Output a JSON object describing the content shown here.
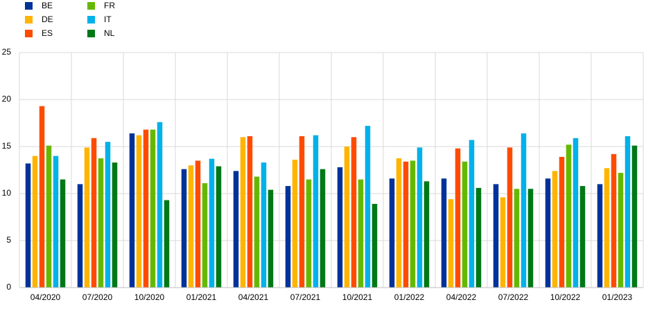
{
  "chart_data": {
    "type": "bar",
    "categories": [
      "04/2020",
      "07/2020",
      "10/2020",
      "01/2021",
      "04/2021",
      "07/2021",
      "10/2021",
      "01/2022",
      "04/2022",
      "07/2022",
      "10/2022",
      "01/2023"
    ],
    "series": [
      {
        "name": "BE",
        "color": "#003299",
        "values": [
          13.2,
          11.0,
          16.4,
          12.6,
          12.4,
          10.8,
          12.8,
          11.6,
          11.6,
          11.0,
          11.6,
          11.0
        ]
      },
      {
        "name": "DE",
        "color": "#ffb400",
        "values": [
          14.0,
          14.9,
          16.2,
          13.0,
          16.0,
          13.6,
          15.0,
          13.75,
          9.4,
          9.6,
          12.4,
          12.7
        ]
      },
      {
        "name": "ES",
        "color": "#ff4b00",
        "values": [
          19.3,
          15.9,
          16.8,
          13.5,
          16.1,
          16.1,
          16.0,
          13.4,
          14.8,
          14.9,
          13.9,
          14.2
        ]
      },
      {
        "name": "FR",
        "color": "#65b800",
        "values": [
          15.1,
          13.75,
          16.8,
          11.1,
          11.8,
          11.5,
          11.5,
          13.5,
          13.4,
          10.5,
          15.2,
          12.2
        ]
      },
      {
        "name": "IT",
        "color": "#00b1ea",
        "values": [
          14.0,
          15.5,
          17.6,
          13.7,
          13.3,
          16.2,
          17.2,
          14.9,
          15.7,
          16.4,
          15.9,
          16.1
        ]
      },
      {
        "name": "NL",
        "color": "#007816",
        "values": [
          11.5,
          13.3,
          9.3,
          12.9,
          10.4,
          12.6,
          8.9,
          11.3,
          10.6,
          10.5,
          10.8,
          15.1
        ]
      }
    ],
    "ylim": [
      0,
      25
    ],
    "yticks": [
      0,
      5,
      10,
      15,
      20,
      25
    ],
    "grid": true
  }
}
